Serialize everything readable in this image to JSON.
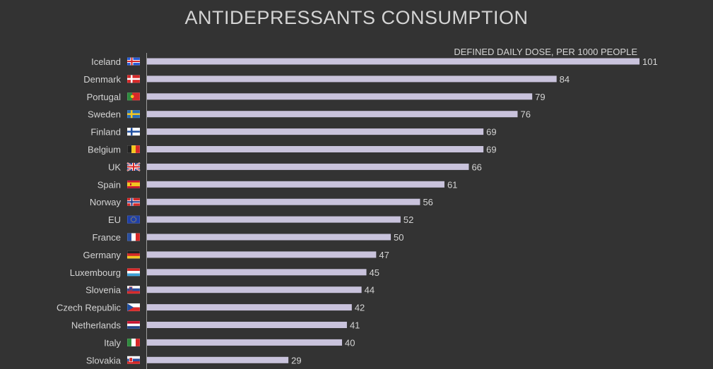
{
  "chart_data": {
    "type": "bar",
    "orientation": "horizontal",
    "title": "ANTIDEPRESSANTS CONSUMPTION",
    "subtitle": "DEFINED DAILY DOSE, PER 1000 PEOPLE",
    "categories": [
      "Iceland",
      "Denmark",
      "Portugal",
      "Sweden",
      "Finland",
      "Belgium",
      "UK",
      "Spain",
      "Norway",
      "EU",
      "France",
      "Germany",
      "Luxembourg",
      "Slovenia",
      "Czech Republic",
      "Netherlands",
      "Italy",
      "Slovakia"
    ],
    "flags": [
      "iceland-flag",
      "denmark-flag",
      "portugal-flag",
      "sweden-flag",
      "finland-flag",
      "belgium-flag",
      "uk-flag",
      "spain-flag",
      "norway-flag",
      "eu-flag",
      "france-flag",
      "germany-flag",
      "luxembourg-flag",
      "slovenia-flag",
      "czech-republic-flag",
      "netherlands-flag",
      "italy-flag",
      "slovakia-flag"
    ],
    "values": [
      101,
      84,
      79,
      76,
      69,
      69,
      66,
      61,
      56,
      52,
      50,
      47,
      45,
      44,
      42,
      41,
      40,
      29
    ],
    "xlim": [
      0,
      101
    ],
    "grid": false,
    "legend": "none",
    "colors": {
      "background": "#333333",
      "bar": "#c9c3dc",
      "text": "#d4d4d4",
      "axis": "#9a9a9a"
    }
  }
}
